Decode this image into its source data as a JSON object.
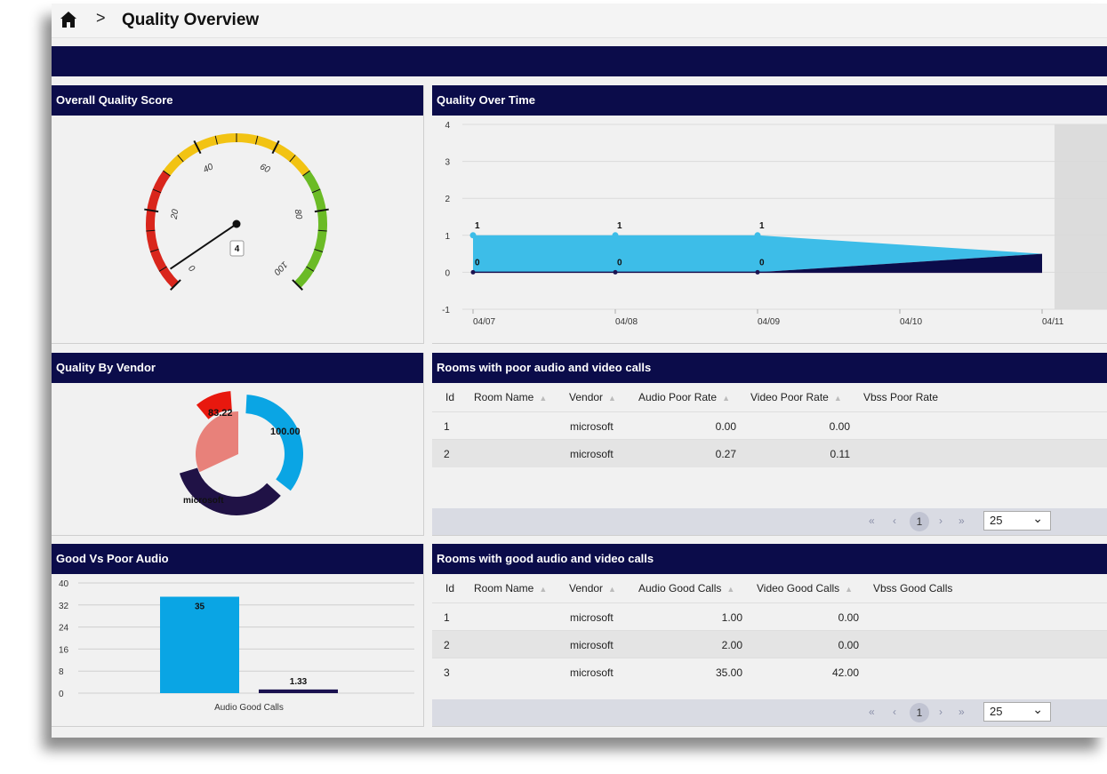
{
  "breadcrumb": {
    "separator": ">",
    "title": "Quality Overview"
  },
  "panels": {
    "overall": {
      "title": "Overall Quality Score",
      "gauge": {
        "value": 4,
        "value_label": "4",
        "min": 0,
        "max": 100,
        "ticks": [
          "0",
          "20",
          "40",
          "60",
          "80",
          "100"
        ],
        "bands": [
          {
            "from": 0,
            "to": 30,
            "color": "#d9261c"
          },
          {
            "from": 30,
            "to": 70,
            "color": "#f2c313"
          },
          {
            "from": 70,
            "to": 100,
            "color": "#6bbb26"
          }
        ]
      }
    },
    "over_time": {
      "title": "Quality Over Time"
    },
    "vendor": {
      "title": "Quality By Vendor",
      "labels": [
        "83.22",
        "100.00",
        "microsoft"
      ]
    },
    "good_poor": {
      "title": "Good Vs Poor Audio"
    },
    "poor_rooms": {
      "title": "Rooms with poor audio and video calls",
      "columns": [
        "Id",
        "Room Name",
        "Vendor",
        "Audio Poor Rate",
        "Video Poor Rate",
        "Vbss Poor Rate"
      ],
      "rows": [
        {
          "id": "1",
          "room": "",
          "vendor": "microsoft",
          "audio": "0.00",
          "video": "0.00",
          "vbss": ""
        },
        {
          "id": "2",
          "room": "",
          "vendor": "microsoft",
          "audio": "0.27",
          "video": "0.11",
          "vbss": ""
        }
      ],
      "pager": {
        "first": "«",
        "prev": "‹",
        "page": "1",
        "next": "›",
        "last": "»",
        "page_size": "25"
      }
    },
    "good_rooms": {
      "title": "Rooms with good audio and video calls",
      "columns": [
        "Id",
        "Room Name",
        "Vendor",
        "Audio Good Calls",
        "Video Good Calls",
        "Vbss Good Calls"
      ],
      "rows": [
        {
          "id": "1",
          "room": "",
          "vendor": "microsoft",
          "audio": "1.00",
          "video": "0.00",
          "vbss": ""
        },
        {
          "id": "2",
          "room": "",
          "vendor": "microsoft",
          "audio": "2.00",
          "video": "0.00",
          "vbss": ""
        },
        {
          "id": "3",
          "room": "",
          "vendor": "microsoft",
          "audio": "35.00",
          "video": "42.00",
          "vbss": ""
        }
      ],
      "pager": {
        "first": "«",
        "prev": "‹",
        "page": "1",
        "next": "›",
        "last": "»",
        "page_size": "25"
      }
    }
  },
  "chart_data": [
    {
      "type": "area",
      "x": [
        "04/07",
        "04/08",
        "04/09",
        "04/10",
        "04/11"
      ],
      "yticks": [
        "4",
        "3",
        "2",
        "1",
        "0",
        "-1"
      ],
      "ylim": [
        -1,
        4
      ],
      "series": [
        {
          "values": [
            1,
            1,
            1,
            0.75,
            0.5
          ],
          "color": "#3dbde8"
        },
        {
          "values": [
            0,
            0,
            0,
            0.25,
            0.5
          ],
          "color": "#0b0c4a"
        }
      ],
      "point_labels": [
        {
          "series": 0,
          "labels": [
            "1",
            "1",
            "1"
          ]
        },
        {
          "series": 1,
          "labels": [
            "0",
            "0",
            "0"
          ]
        }
      ]
    },
    {
      "type": "pie",
      "slices": [
        {
          "value": 83.22,
          "label": "83.22"
        },
        {
          "value": 100.0,
          "label": "100.00"
        },
        {
          "label": "microsoft"
        }
      ],
      "colors": {
        "outer_red": "#e8180e",
        "outer_blue": "#0aa5e4",
        "outer_dark": "#201246",
        "inner_pink": "#e8817a",
        "inner_light": "#7dcfee"
      }
    },
    {
      "type": "bar",
      "categories": [
        "Audio Good Calls"
      ],
      "series": [
        {
          "values": [
            35
          ],
          "label": "35",
          "color": "#0aa5e4"
        },
        {
          "values": [
            1.33
          ],
          "label": "1.33",
          "color": "#1b1250"
        }
      ],
      "yticks": [
        "40",
        "32",
        "24",
        "16",
        "8",
        "0"
      ],
      "ylim": [
        0,
        40
      ]
    }
  ]
}
